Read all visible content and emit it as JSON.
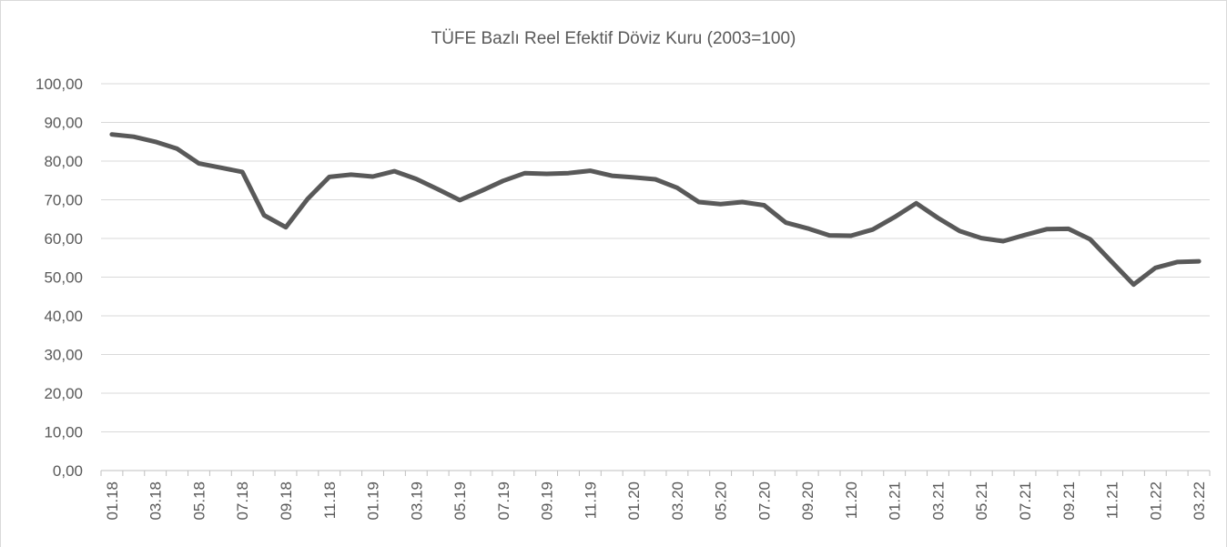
{
  "chart_data": {
    "type": "line",
    "title": "TÜFE Bazlı Reel Efektif Döviz Kuru (2003=100)",
    "categories": [
      "01.18",
      null,
      "03.18",
      null,
      "05.18",
      null,
      "07.18",
      null,
      "09.18",
      null,
      "11.18",
      null,
      "01.19",
      null,
      "03.19",
      null,
      "05.19",
      null,
      "07.19",
      null,
      "09.19",
      null,
      "11.19",
      null,
      "01.20",
      null,
      "03.20",
      null,
      "05.20",
      null,
      "07.20",
      null,
      "09.20",
      null,
      "11.20",
      null,
      "01.21",
      null,
      "03.21",
      null,
      "05.21",
      null,
      "07.21",
      null,
      "09.21",
      null,
      "11.21",
      null,
      "01.22",
      null,
      "03.22"
    ],
    "series": [
      {
        "color": "#595959",
        "values": [
          86.9,
          86.3,
          85.0,
          83.2,
          79.4,
          78.3,
          77.2,
          66.0,
          62.9,
          70.2,
          75.9,
          76.5,
          76.0,
          77.4,
          75.4,
          72.7,
          69.9,
          72.3,
          74.9,
          76.9,
          76.7,
          76.9,
          77.5,
          76.2,
          75.8,
          75.3,
          73.1,
          69.4,
          68.9,
          69.4,
          68.6,
          64.1,
          62.6,
          60.8,
          60.7,
          62.3,
          65.5,
          69.1,
          65.3,
          61.9,
          60.1,
          59.3,
          60.9,
          62.4,
          62.5,
          59.8,
          53.9,
          48.1,
          52.4,
          53.9,
          54.1
        ]
      }
    ],
    "ylim": [
      0,
      100
    ],
    "yticks": [
      {
        "value": 0,
        "label": "0,00"
      },
      {
        "value": 10,
        "label": "10,00"
      },
      {
        "value": 20,
        "label": "20,00"
      },
      {
        "value": 30,
        "label": "30,00"
      },
      {
        "value": 40,
        "label": "40,00"
      },
      {
        "value": 50,
        "label": "50,00"
      },
      {
        "value": 60,
        "label": "60,00"
      },
      {
        "value": 70,
        "label": "70,00"
      },
      {
        "value": 80,
        "label": "80,00"
      },
      {
        "value": 90,
        "label": "90,00"
      },
      {
        "value": 100,
        "label": "100,00"
      }
    ],
    "grid": true
  }
}
